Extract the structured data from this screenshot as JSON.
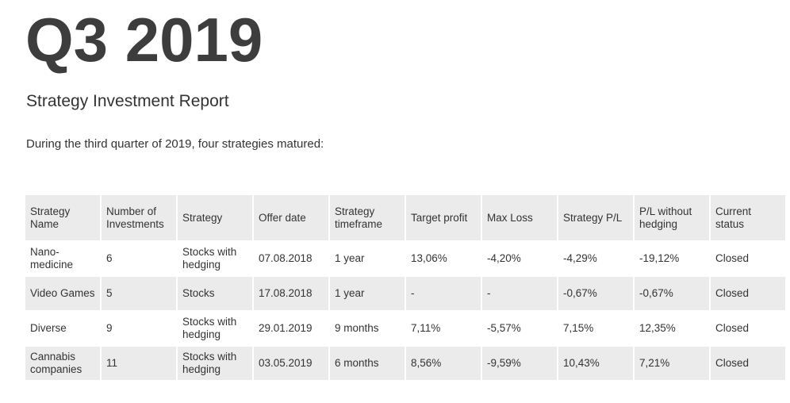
{
  "title": "Q3 2019",
  "subtitle": "Strategy Investment Report",
  "intro": "During the third quarter of 2019, four strategies matured:",
  "table": {
    "headers": [
      "Strategy Name",
      "Number of Investments",
      "Strategy",
      "Offer date",
      "Strategy timeframe",
      "Target profit",
      "Max Loss",
      "Strategy P/L",
      "P/L without hedging",
      "Current status"
    ],
    "rows": [
      [
        "Nano-medicine",
        "6",
        "Stocks with hedging",
        "07.08.2018",
        "1 year",
        "13,06%",
        "-4,20%",
        "-4,29%",
        "-19,12%",
        "Closed"
      ],
      [
        "Video Games",
        "5",
        "Stocks",
        "17.08.2018",
        "1 year",
        "-",
        "-",
        "-0,67%",
        "-0,67%",
        "Closed"
      ],
      [
        "Diverse",
        "9",
        "Stocks with hedging",
        "29.01.2019",
        "9 months",
        "7,11%",
        "-5,57%",
        "7,15%",
        "12,35%",
        "Closed"
      ],
      [
        "Cannabis companies",
        "11",
        "Stocks with hedging",
        "03.05.2019",
        "6 months",
        "8,56%",
        "-9,59%",
        "10,43%",
        "7,21%",
        "Closed"
      ]
    ]
  }
}
